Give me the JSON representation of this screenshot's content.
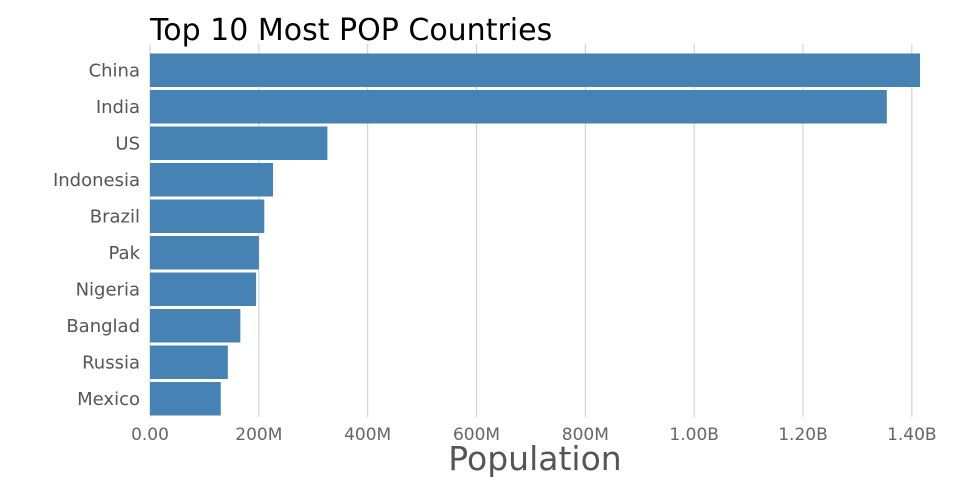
{
  "chart_data": {
    "type": "bar",
    "orientation": "horizontal",
    "title": "Top 10 Most POP Countries",
    "xlabel": "Population",
    "ylabel": "",
    "categories": [
      "China",
      "India",
      "US",
      "Indonesia",
      "Brazil",
      "Pak",
      "Nigeria",
      "Banglad",
      "Russia",
      "Mexico"
    ],
    "values": [
      1415000000,
      1354000000,
      326000000,
      226000000,
      210000000,
      200000000,
      195000000,
      166000000,
      143000000,
      130000000
    ],
    "xlim": [
      0,
      1415000000
    ],
    "x_ticks": [
      0,
      200000000,
      400000000,
      600000000,
      800000000,
      1000000000,
      1200000000,
      1400000000
    ],
    "x_tick_labels": [
      "0.00",
      "200M",
      "400M",
      "600M",
      "800M",
      "1.00B",
      "1.20B",
      "1.40B"
    ],
    "grid": "vertical",
    "legend": "none",
    "bar_color": "#4682b4",
    "grid_color": "#cccccc"
  }
}
